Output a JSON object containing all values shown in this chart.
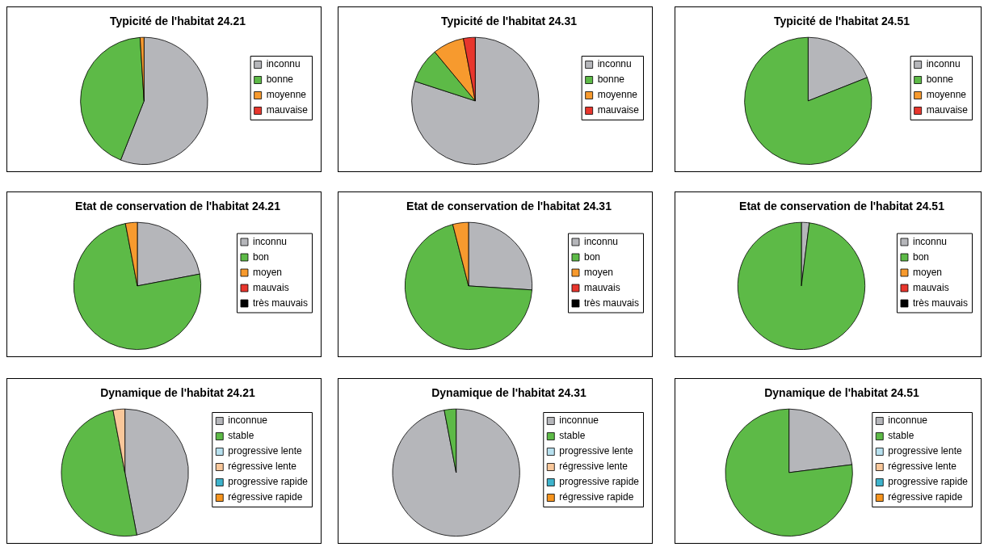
{
  "chart_data": [
    {
      "type": "pie",
      "title": "Typicité de l'habitat 24.21",
      "categories": [
        "inconnu",
        "bonne",
        "moyenne",
        "mauvaise"
      ],
      "values": [
        56,
        43,
        1,
        0
      ],
      "colors": [
        "#b5b6ba",
        "#5dba47",
        "#f79a2e",
        "#e8362d"
      ],
      "legend": "right"
    },
    {
      "type": "pie",
      "title": "Typicité de l'habitat 24.31",
      "categories": [
        "inconnu",
        "bonne",
        "moyenne",
        "mauvaise"
      ],
      "values": [
        80,
        9,
        8,
        3
      ],
      "colors": [
        "#b5b6ba",
        "#5dba47",
        "#f79a2e",
        "#e8362d"
      ],
      "legend": "right"
    },
    {
      "type": "pie",
      "title": "Typicité de l'habitat 24.51",
      "categories": [
        "inconnu",
        "bonne",
        "moyenne",
        "mauvaise"
      ],
      "values": [
        19,
        81,
        0,
        0
      ],
      "colors": [
        "#b5b6ba",
        "#5dba47",
        "#f79a2e",
        "#e8362d"
      ],
      "legend": "right"
    },
    {
      "type": "pie",
      "title": "Etat de conservation de l'habitat 24.21",
      "categories": [
        "inconnu",
        "bon",
        "moyen",
        "mauvais",
        "très mauvais"
      ],
      "values": [
        22,
        75,
        3,
        0,
        0
      ],
      "colors": [
        "#b5b6ba",
        "#5dba47",
        "#f79a2e",
        "#e8362d",
        "#000000"
      ],
      "legend": "right"
    },
    {
      "type": "pie",
      "title": "Etat de conservation de l'habitat 24.31",
      "categories": [
        "inconnu",
        "bon",
        "moyen",
        "mauvais",
        "très mauvais"
      ],
      "values": [
        26,
        70,
        4,
        0,
        0
      ],
      "colors": [
        "#b5b6ba",
        "#5dba47",
        "#f79a2e",
        "#e8362d",
        "#000000"
      ],
      "legend": "right"
    },
    {
      "type": "pie",
      "title": "Etat de conservation de l'habitat 24.51",
      "categories": [
        "inconnu",
        "bon",
        "moyen",
        "mauvais",
        "très mauvais"
      ],
      "values": [
        2,
        98,
        0,
        0,
        0
      ],
      "colors": [
        "#b5b6ba",
        "#5dba47",
        "#f79a2e",
        "#e8362d",
        "#000000"
      ],
      "legend": "right"
    },
    {
      "type": "pie",
      "title": "Dynamique de l'habitat 24.21",
      "categories": [
        "inconnue",
        "stable",
        "progressive lente",
        "régressive lente",
        "progressive rapide",
        "régressive rapide"
      ],
      "values": [
        47,
        50,
        0,
        3,
        0,
        0
      ],
      "colors": [
        "#b5b6ba",
        "#5dba47",
        "#b7e0ee",
        "#f9c79a",
        "#3db3cc",
        "#f7941d"
      ],
      "legend": "right"
    },
    {
      "type": "pie",
      "title": "Dynamique de l'habitat 24.31",
      "categories": [
        "inconnue",
        "stable",
        "progressive lente",
        "régressive lente",
        "progressive rapide",
        "régressive rapide"
      ],
      "values": [
        97,
        3,
        0,
        0,
        0,
        0
      ],
      "colors": [
        "#b5b6ba",
        "#5dba47",
        "#b7e0ee",
        "#f9c79a",
        "#3db3cc",
        "#f7941d"
      ],
      "legend": "right"
    },
    {
      "type": "pie",
      "title": "Dynamique de l'habitat 24.51",
      "categories": [
        "inconnue",
        "stable",
        "progressive lente",
        "régressive lente",
        "progressive rapide",
        "régressive rapide"
      ],
      "values": [
        23,
        77,
        0,
        0,
        0,
        0
      ],
      "colors": [
        "#b5b6ba",
        "#5dba47",
        "#b7e0ee",
        "#f9c79a",
        "#3db3cc",
        "#f7941d"
      ],
      "legend": "right"
    }
  ]
}
